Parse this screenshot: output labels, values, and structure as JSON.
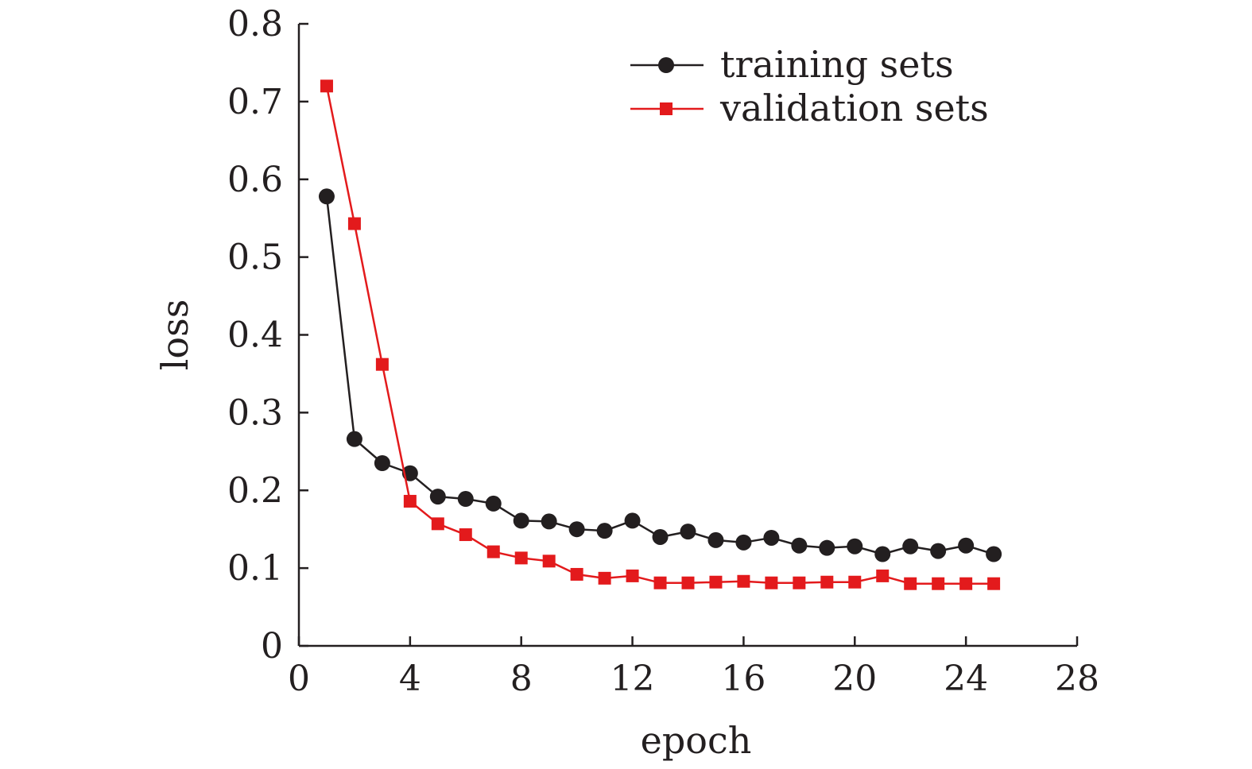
{
  "chart_data": {
    "type": "line",
    "title": "",
    "xlabel": "epoch",
    "ylabel": "loss",
    "xlim": [
      0,
      28
    ],
    "ylim": [
      0,
      0.8
    ],
    "xticks": [
      0,
      4,
      8,
      12,
      16,
      20,
      24,
      28
    ],
    "yticks": [
      0,
      0.1,
      0.2,
      0.3,
      0.4,
      0.5,
      0.6,
      0.7,
      0.8
    ],
    "xtick_labels": [
      "0",
      "4",
      "8",
      "12",
      "16",
      "20",
      "24",
      "28"
    ],
    "ytick_labels": [
      "0",
      "0.1",
      "0.2",
      "0.3",
      "0.4",
      "0.5",
      "0.6",
      "0.7",
      "0.8"
    ],
    "grid": false,
    "legend_position": "top-right",
    "x": [
      1,
      2,
      3,
      4,
      5,
      6,
      7,
      8,
      9,
      10,
      11,
      12,
      13,
      14,
      15,
      16,
      17,
      18,
      19,
      20,
      21,
      22,
      23,
      24,
      25
    ],
    "series": [
      {
        "name": "training sets",
        "color": "#231f20",
        "marker": "circle",
        "values": [
          0.578,
          0.266,
          0.235,
          0.222,
          0.192,
          0.189,
          0.183,
          0.161,
          0.16,
          0.15,
          0.148,
          0.161,
          0.14,
          0.147,
          0.136,
          0.133,
          0.139,
          0.129,
          0.126,
          0.128,
          0.118,
          0.128,
          0.122,
          0.129,
          0.118
        ]
      },
      {
        "name": "validation sets",
        "color": "#e31a1c",
        "marker": "square",
        "values": [
          0.72,
          0.543,
          0.362,
          0.186,
          0.157,
          0.143,
          0.121,
          0.113,
          0.109,
          0.092,
          0.087,
          0.09,
          0.081,
          0.081,
          0.082,
          0.083,
          0.081,
          0.081,
          0.082,
          0.082,
          0.09,
          0.08,
          0.08,
          0.08,
          0.08
        ]
      }
    ]
  }
}
